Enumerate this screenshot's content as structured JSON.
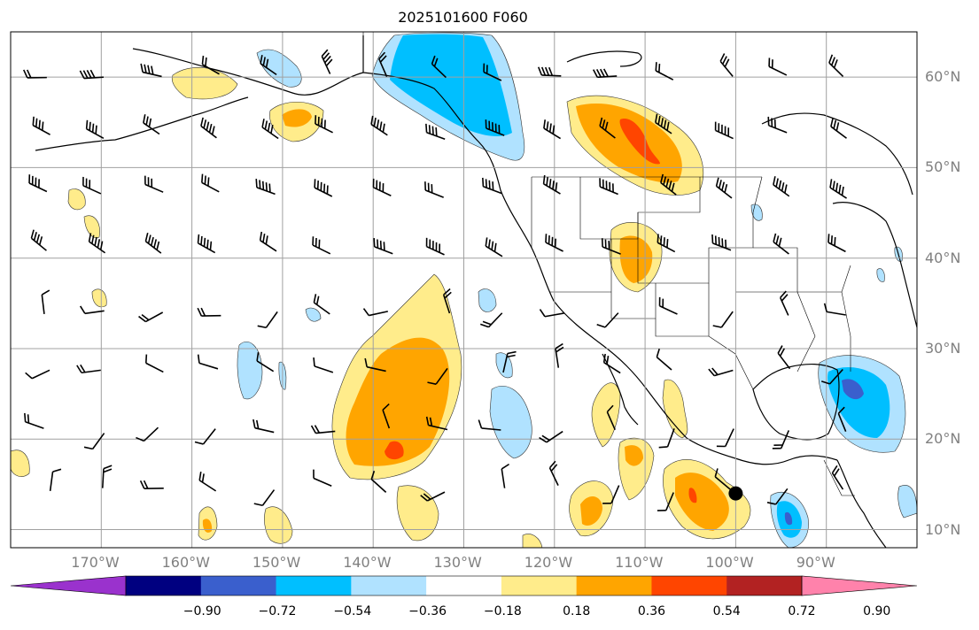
{
  "title": "2025101600 F060",
  "map": {
    "region": "North-East Pacific / North America",
    "lon_range": [
      -180,
      -80
    ],
    "lat_range": [
      8,
      65
    ],
    "grid": true,
    "lon_labels": [
      "170°W",
      "160°W",
      "150°W",
      "140°W",
      "130°W",
      "120°W",
      "110°W",
      "100°W",
      "90°W"
    ],
    "lat_labels": [
      "60°N",
      "50°N",
      "40°N",
      "30°N",
      "20°N",
      "10°N"
    ],
    "overlay": "wind-barbs",
    "markers": [
      {
        "name": "storm-center",
        "lon": -100,
        "lat": 14
      }
    ]
  },
  "colorbar": {
    "extend": "both",
    "tick_labels": [
      "−0.90",
      "−0.72",
      "−0.54",
      "−0.36",
      "−0.18",
      "0.18",
      "0.36",
      "0.54",
      "0.72",
      "0.90"
    ],
    "colors": [
      "#9a32cd",
      "#000080",
      "#3a5fcd",
      "#00bfff",
      "#b0e2ff",
      "#ffffff",
      "#ffec8b",
      "#ffa500",
      "#ff4500",
      "#b22222",
      "#ff82ab"
    ]
  }
}
